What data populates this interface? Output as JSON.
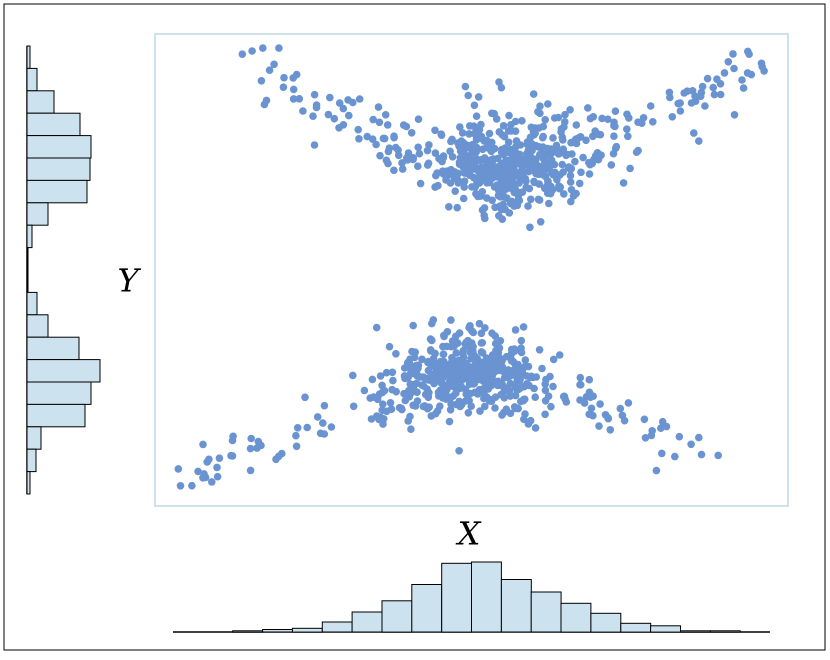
{
  "chart_data": [
    {
      "type": "scatter",
      "title": "",
      "xlabel": "X",
      "ylabel": "Y",
      "xlim": [
        0,
        20
      ],
      "ylim": [
        0,
        15
      ],
      "grid": false,
      "ticks_shown": false,
      "marker_color": "#6a93d1",
      "frame_color": "#cfe2ec",
      "series": [
        {
          "name": "",
          "seed": 7,
          "n_upper": 500,
          "n_lower": 460,
          "upper_blob": {
            "center": [
              11.2,
              10.6
            ],
            "sd": [
              2.0,
              1.0
            ]
          },
          "lower_blob": {
            "center": [
              10.0,
              4.3
            ],
            "sd": [
              2.0,
              0.9
            ]
          },
          "arms": [
            {
              "from": [
                10.8,
                10.6
              ],
              "to": [
                19.4,
                14.3
              ],
              "n": 60
            },
            {
              "from": [
                8.5,
                10.8
              ],
              "to": [
                2.6,
                14.6
              ],
              "n": 40
            },
            {
              "from": [
                9.6,
                4.2
              ],
              "to": [
                0.6,
                0.4
              ],
              "n": 45
            },
            {
              "from": [
                12.0,
                4.2
              ],
              "to": [
                17.6,
                1.4
              ],
              "n": 30
            }
          ],
          "extra_points": [
            [
              2.6,
              14.6
            ],
            [
              19.0,
              14.6
            ],
            [
              19.4,
              14.3
            ],
            [
              0.6,
              0.4
            ],
            [
              16.0,
              0.9
            ],
            [
              1.8,
              0.7
            ],
            [
              18.0,
              1.4
            ]
          ]
        }
      ]
    },
    {
      "type": "bar",
      "orientation": "vertical",
      "role": "x-marginal-histogram",
      "bin_range": [
        0,
        20
      ],
      "values": [
        0,
        0,
        1,
        2,
        3,
        8,
        16,
        25,
        38,
        55,
        56,
        42,
        32,
        23,
        15,
        7,
        5,
        1,
        1,
        0
      ],
      "bar_color": "#cce2ee",
      "edge_color": "#000000"
    },
    {
      "type": "bar",
      "orientation": "horizontal",
      "role": "y-marginal-histogram",
      "bin_range": [
        0,
        15
      ],
      "values_top_to_bottom": [
        3,
        10,
        27,
        53,
        64,
        63,
        60,
        21,
        5,
        1,
        1,
        10,
        21,
        52,
        73,
        64,
        58,
        14,
        9,
        3
      ],
      "bar_color": "#cce2ee",
      "edge_color": "#000000"
    }
  ]
}
